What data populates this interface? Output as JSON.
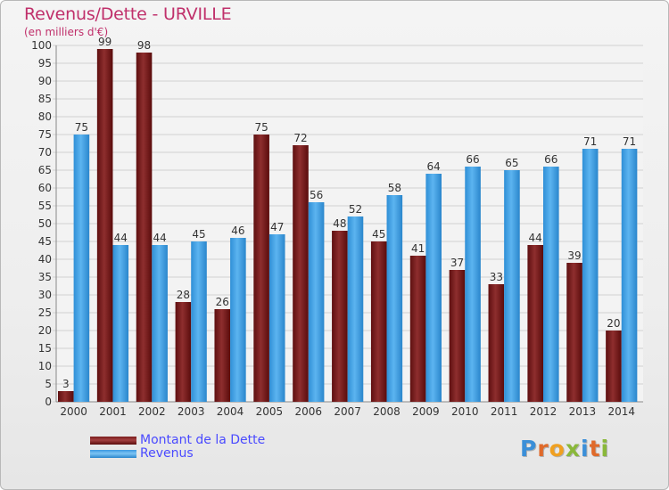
{
  "chart_data": {
    "type": "bar",
    "title": "Revenus/Dette - URVILLE",
    "subtitle": "(en milliers d'€)",
    "categories": [
      "2000",
      "2001",
      "2002",
      "2003",
      "2004",
      "2005",
      "2006",
      "2007",
      "2008",
      "2009",
      "2010",
      "2011",
      "2012",
      "2013",
      "2014"
    ],
    "series": [
      {
        "name": "Montant de la Dette",
        "color": "#7a1c1c",
        "values": [
          3,
          99,
          98,
          28,
          26,
          75,
          72,
          48,
          45,
          41,
          37,
          33,
          44,
          39,
          20
        ]
      },
      {
        "name": "Revenus",
        "color": "#4ba8ec",
        "values": [
          75,
          44,
          44,
          45,
          46,
          47,
          56,
          52,
          58,
          64,
          66,
          65,
          66,
          71,
          71
        ]
      }
    ],
    "ylim": [
      0,
      100
    ],
    "yticks": [
      0,
      5,
      10,
      15,
      20,
      25,
      30,
      35,
      40,
      45,
      50,
      55,
      60,
      65,
      70,
      75,
      80,
      85,
      90,
      95,
      100
    ],
    "grid": true,
    "legend_position": "bottom-left"
  },
  "logo": {
    "text": "Proxiti"
  }
}
